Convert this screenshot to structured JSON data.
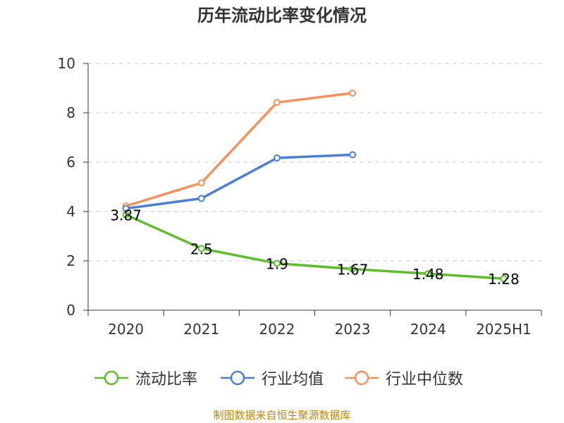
{
  "chart_data": {
    "type": "line",
    "title": "历年流动比率变化情况",
    "categories": [
      "2020",
      "2021",
      "2022",
      "2023",
      "2024",
      "2025H1"
    ],
    "ylim": [
      0,
      10
    ],
    "yticks": [
      0,
      2,
      4,
      6,
      8,
      10
    ],
    "grid": true,
    "legend_position": "bottom",
    "series": [
      {
        "name": "流动比率",
        "color": "#5cbf2a",
        "values": [
          3.87,
          2.5,
          1.9,
          1.67,
          1.48,
          1.28
        ],
        "labels": [
          "3.87",
          "2.5",
          "1.9",
          "1.67",
          "1.48",
          "1.28"
        ]
      },
      {
        "name": "行业均值",
        "color": "#4a7fd8",
        "values": [
          4.12,
          4.53,
          6.17,
          6.3,
          null,
          null
        ]
      },
      {
        "name": "行业中位数",
        "color": "#f5925a",
        "values": [
          4.22,
          5.16,
          8.42,
          8.8,
          null,
          null
        ]
      }
    ]
  },
  "source": "制图数据来自恒生聚源数据库"
}
